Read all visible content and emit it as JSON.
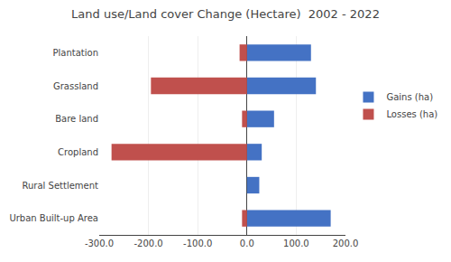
{
  "chart_data": {
    "type": "bar",
    "orientation": "horizontal",
    "title": "Land use/Land cover Change (Hectare)  2002 - 2022",
    "categories": [
      "Plantation",
      "Grassland",
      "Bare land",
      "Cropland",
      "Rural Settlement",
      "Urban Built-up Area"
    ],
    "series": [
      {
        "name": "Gains (ha)",
        "color": "#4472C4",
        "values": [
          130,
          140,
          55,
          30,
          25,
          170
        ]
      },
      {
        "name": "Losses (ha)",
        "color": "#C0504D",
        "values": [
          -15,
          -195,
          -10,
          -275,
          0,
          -10
        ]
      }
    ],
    "xlim": [
      -300,
      200
    ],
    "xticks": [
      {
        "value": -300,
        "label": "-300.0"
      },
      {
        "value": -200,
        "label": "-200.0"
      },
      {
        "value": -100,
        "label": "-100.0"
      },
      {
        "value": 0,
        "label": "0.0"
      },
      {
        "value": 100,
        "label": "100.0"
      },
      {
        "value": 200,
        "label": "200.0"
      }
    ],
    "grid": true,
    "legend": "right"
  }
}
